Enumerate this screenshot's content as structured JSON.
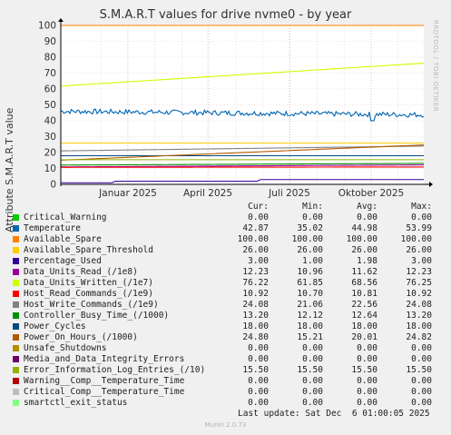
{
  "title": "S.M.A.R.T values for drive nvme0 - by year",
  "watermark": "RRDTOOL / TOBI OETIKER",
  "footer": "Munin 2.0.73",
  "last_update": "Last update: Sat Dec  6 01:00:05 2025",
  "legend_headers": [
    "Cur:",
    "Min:",
    "Avg:",
    "Max:"
  ],
  "chart_data": {
    "type": "line",
    "title": "S.M.A.R.T values for drive nvme0 - by year",
    "ylabel": "Attribute S.M.A.R.T value",
    "xlabel": "",
    "ylim": [
      0,
      100
    ],
    "y_ticks": [
      0,
      10,
      20,
      30,
      40,
      50,
      60,
      70,
      80,
      90,
      100
    ],
    "x_ticks": [
      "Januar 2025",
      "April 2025",
      "Juli 2025",
      "Oktober 2025"
    ],
    "grid": true,
    "series": [
      {
        "name": "Critical_Warning",
        "color": "#00cc00",
        "cur": "0.00",
        "min": "0.00",
        "avg": "0.00",
        "max": "0.00"
      },
      {
        "name": "Temperature",
        "color": "#0066b3",
        "cur": "42.87",
        "min": "35.02",
        "avg": "44.98",
        "max": "53.99"
      },
      {
        "name": "Available_Spare",
        "color": "#ff8000",
        "cur": "100.00",
        "min": "100.00",
        "avg": "100.00",
        "max": "100.00"
      },
      {
        "name": "Available_Spare_Threshold",
        "color": "#ffcc00",
        "cur": "26.00",
        "min": "26.00",
        "avg": "26.00",
        "max": "26.00"
      },
      {
        "name": "Percentage_Used",
        "color": "#330099",
        "cur": "3.00",
        "min": "1.00",
        "avg": "1.98",
        "max": "3.00"
      },
      {
        "name": "Data_Units_Read_(/1e8)",
        "color": "#990099",
        "cur": "12.23",
        "min": "10.96",
        "avg": "11.62",
        "max": "12.23"
      },
      {
        "name": "Data_Units_Written_(/1e7)",
        "color": "#ccff00",
        "cur": "76.22",
        "min": "61.85",
        "avg": "68.56",
        "max": "76.25"
      },
      {
        "name": "Host_Read_Commands_(/1e9)",
        "color": "#ff0000",
        "cur": "10.92",
        "min": "10.70",
        "avg": "10.81",
        "max": "10.92"
      },
      {
        "name": "Host_Write_Commands_(/1e9)",
        "color": "#808080",
        "cur": "24.08",
        "min": "21.06",
        "avg": "22.56",
        "max": "24.08"
      },
      {
        "name": "Controller_Busy_Time_(/1000)",
        "color": "#008f00",
        "cur": "13.20",
        "min": "12.12",
        "avg": "12.64",
        "max": "13.20"
      },
      {
        "name": "Power_Cycles",
        "color": "#00487d",
        "cur": "18.00",
        "min": "18.00",
        "avg": "18.00",
        "max": "18.00"
      },
      {
        "name": "Power_On_Hours_(/1000)",
        "color": "#b35a00",
        "cur": "24.80",
        "min": "15.21",
        "avg": "20.01",
        "max": "24.82"
      },
      {
        "name": "Unsafe_Shutdowns",
        "color": "#b38f00",
        "cur": "0.00",
        "min": "0.00",
        "avg": "0.00",
        "max": "0.00"
      },
      {
        "name": "Media_and_Data_Integrity_Errors",
        "color": "#6b006b",
        "cur": "0.00",
        "min": "0.00",
        "avg": "0.00",
        "max": "0.00"
      },
      {
        "name": "Error_Information_Log_Entries_(/10)",
        "color": "#8fb300",
        "cur": "15.50",
        "min": "15.50",
        "avg": "15.50",
        "max": "15.50"
      },
      {
        "name": "Warning__Comp__Temperature_Time",
        "color": "#b30000",
        "cur": "0.00",
        "min": "0.00",
        "avg": "0.00",
        "max": "0.00"
      },
      {
        "name": "Critical_Comp__Temperature_Time",
        "color": "#bebebe",
        "cur": "0.00",
        "min": "0.00",
        "avg": "0.00",
        "max": "0.00"
      },
      {
        "name": "smartctl_exit_status",
        "color": "#80ff80",
        "cur": "0.00",
        "min": "0.00",
        "avg": "0.00",
        "max": "0.00"
      }
    ]
  }
}
